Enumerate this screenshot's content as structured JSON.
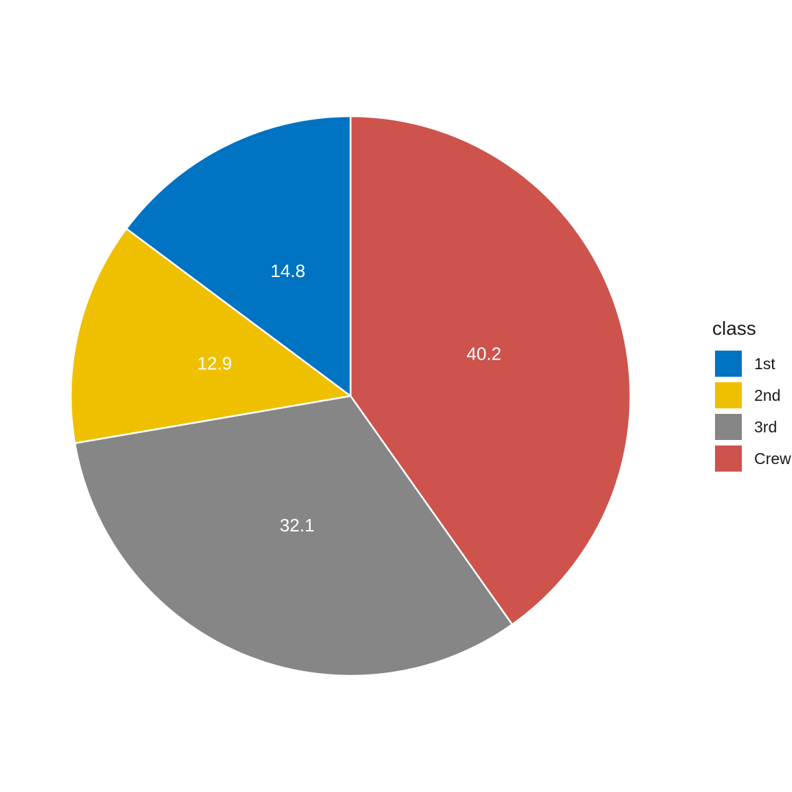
{
  "chart_data": {
    "type": "pie",
    "categories": [
      "1st",
      "2nd",
      "3rd",
      "Crew"
    ],
    "values": [
      14.8,
      12.9,
      32.1,
      40.2
    ],
    "labels": [
      "14.8",
      "12.9",
      "32.1",
      "40.2"
    ],
    "colors": [
      "#0073C2",
      "#EFC000",
      "#868686",
      "#CD534C"
    ],
    "direction": "counterclockwise",
    "start_angle": "top",
    "legend_title": "class",
    "legend_position": "right"
  }
}
